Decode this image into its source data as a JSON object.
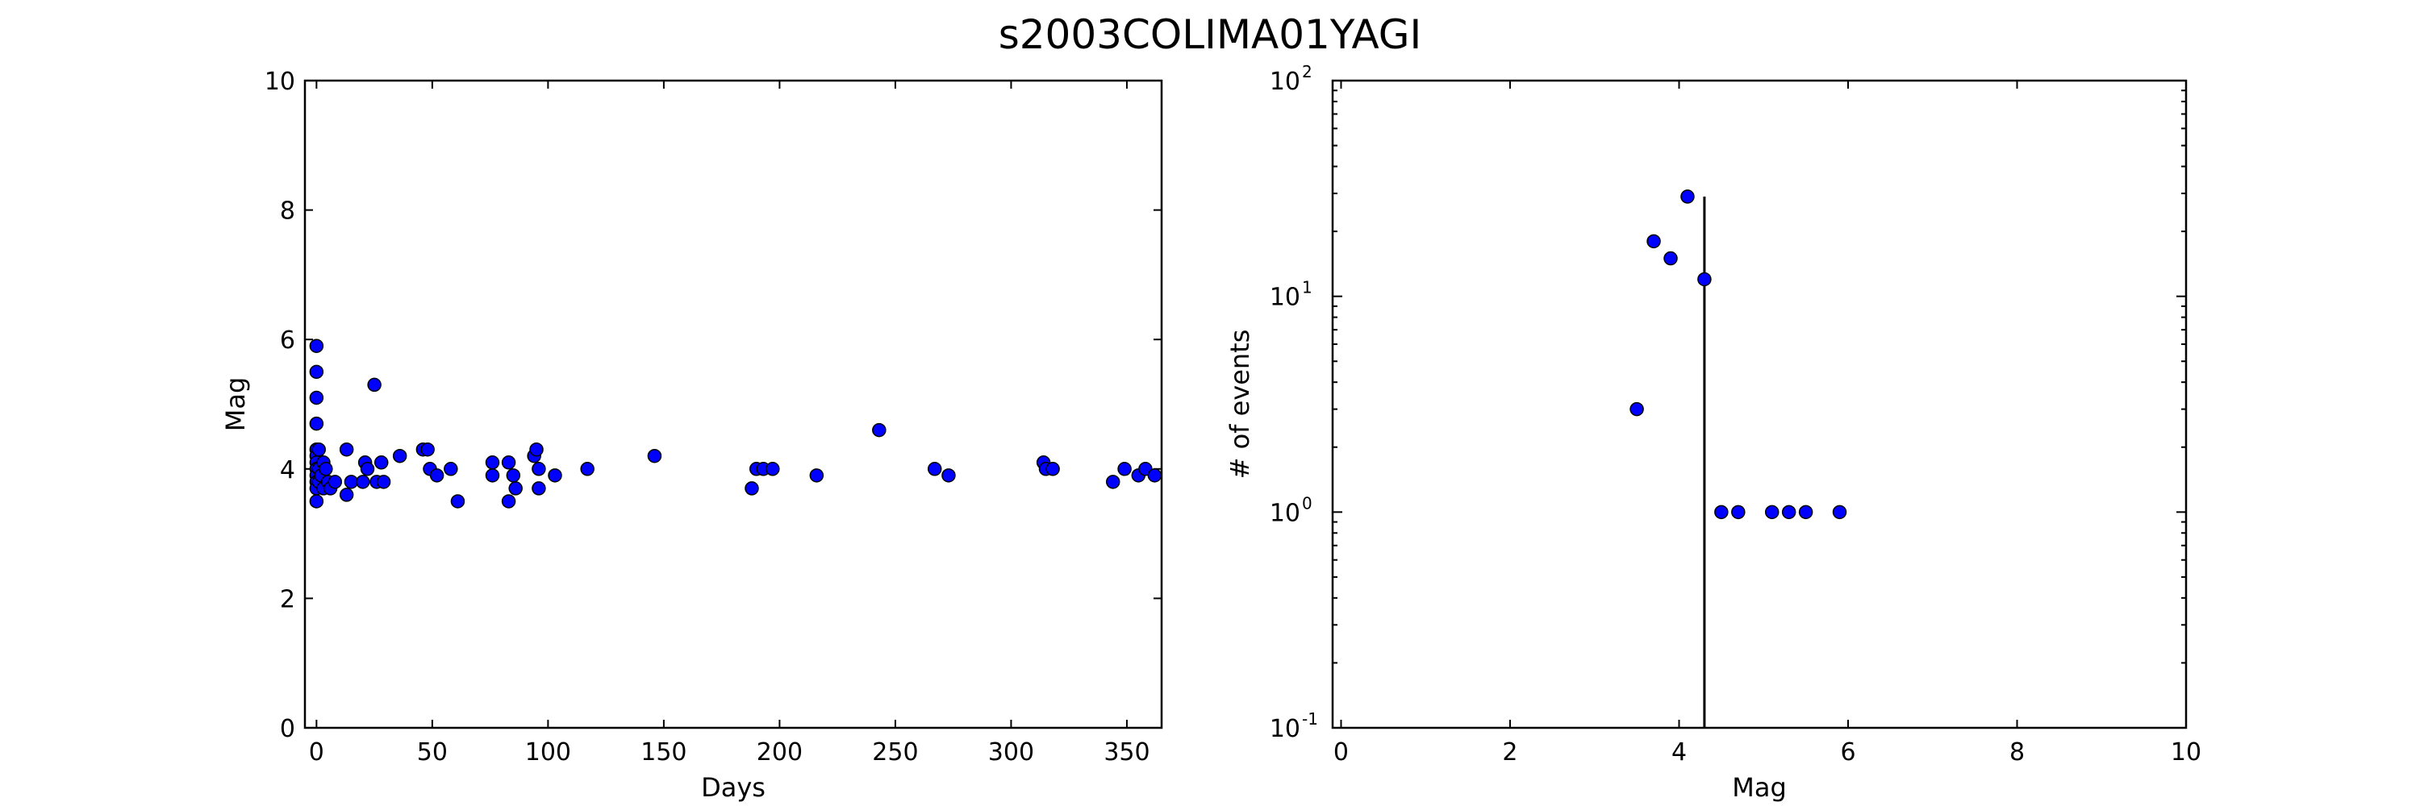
{
  "figure": {
    "title": "s2003COLIMA01YAGI"
  },
  "chart_data": [
    {
      "type": "scatter",
      "title": "",
      "xlabel": "Days",
      "ylabel": "Mag",
      "xlim": [
        -5,
        365
      ],
      "ylim": [
        0,
        10
      ],
      "xticks": [
        0,
        50,
        100,
        150,
        200,
        250,
        300,
        350
      ],
      "yticks": [
        0,
        2,
        4,
        6,
        8,
        10
      ],
      "xticklabels": [
        "0",
        "50",
        "100",
        "150",
        "200",
        "250",
        "300",
        "350"
      ],
      "yticklabels": [
        "0",
        "2",
        "4",
        "6",
        "8",
        "10"
      ],
      "grid": false,
      "marker_color": "#0000ff",
      "points": [
        [
          0,
          5.9
        ],
        [
          0,
          5.5
        ],
        [
          0,
          5.1
        ],
        [
          0,
          4.7
        ],
        [
          0,
          4.3
        ],
        [
          0,
          4.2
        ],
        [
          0,
          4.1
        ],
        [
          0,
          4.0
        ],
        [
          0,
          3.9
        ],
        [
          0,
          3.8
        ],
        [
          0,
          3.7
        ],
        [
          0,
          3.5
        ],
        [
          1,
          4.3
        ],
        [
          1,
          4.0
        ],
        [
          1,
          3.8
        ],
        [
          2,
          3.9
        ],
        [
          3,
          3.7
        ],
        [
          3,
          4.1
        ],
        [
          4,
          4.0
        ],
        [
          5,
          3.8
        ],
        [
          6,
          3.7
        ],
        [
          8,
          3.8
        ],
        [
          13,
          4.3
        ],
        [
          13,
          3.6
        ],
        [
          15,
          3.8
        ],
        [
          20,
          3.8
        ],
        [
          21,
          4.1
        ],
        [
          22,
          4.0
        ],
        [
          25,
          5.3
        ],
        [
          26,
          3.8
        ],
        [
          28,
          4.1
        ],
        [
          29,
          3.8
        ],
        [
          36,
          4.2
        ],
        [
          46,
          4.3
        ],
        [
          48,
          4.3
        ],
        [
          49,
          4.0
        ],
        [
          52,
          3.9
        ],
        [
          58,
          4.0
        ],
        [
          61,
          3.5
        ],
        [
          76,
          4.1
        ],
        [
          76,
          3.9
        ],
        [
          83,
          4.1
        ],
        [
          83,
          3.5
        ],
        [
          85,
          3.9
        ],
        [
          86,
          3.7
        ],
        [
          94,
          4.2
        ],
        [
          95,
          4.3
        ],
        [
          96,
          4.0
        ],
        [
          96,
          3.7
        ],
        [
          103,
          3.9
        ],
        [
          117,
          4.0
        ],
        [
          146,
          4.2
        ],
        [
          188,
          3.7
        ],
        [
          190,
          4.0
        ],
        [
          193,
          4.0
        ],
        [
          197,
          4.0
        ],
        [
          216,
          3.9
        ],
        [
          243,
          4.6
        ],
        [
          267,
          4.0
        ],
        [
          273,
          3.9
        ],
        [
          314,
          4.1
        ],
        [
          315,
          4.0
        ],
        [
          318,
          4.0
        ],
        [
          344,
          3.8
        ],
        [
          349,
          4.0
        ],
        [
          355,
          3.9
        ],
        [
          358,
          4.0
        ],
        [
          362,
          3.9
        ]
      ]
    },
    {
      "type": "scatter",
      "title": "",
      "xlabel": "Mag",
      "ylabel": "# of events",
      "xlim": [
        -0.1,
        10
      ],
      "ylim": [
        0.1,
        100
      ],
      "yscale": "log",
      "xticks": [
        0,
        2,
        4,
        6,
        8,
        10
      ],
      "xticklabels": [
        "0",
        "2",
        "4",
        "6",
        "8",
        "10"
      ],
      "yticks": [
        0.1,
        1,
        10,
        100
      ],
      "ytick_base": "10",
      "ytick_exponents": [
        "-1",
        "0",
        "1",
        "2"
      ],
      "grid": false,
      "marker_color": "#0000ff",
      "points": [
        [
          3.5,
          3
        ],
        [
          3.7,
          18
        ],
        [
          3.9,
          15
        ],
        [
          4.1,
          29
        ],
        [
          4.3,
          12
        ],
        [
          4.5,
          1
        ],
        [
          4.7,
          1
        ],
        [
          5.1,
          1
        ],
        [
          5.3,
          1
        ],
        [
          5.5,
          1
        ],
        [
          5.9,
          1
        ]
      ],
      "vline": {
        "x": 4.3,
        "y_top": 29
      }
    }
  ]
}
